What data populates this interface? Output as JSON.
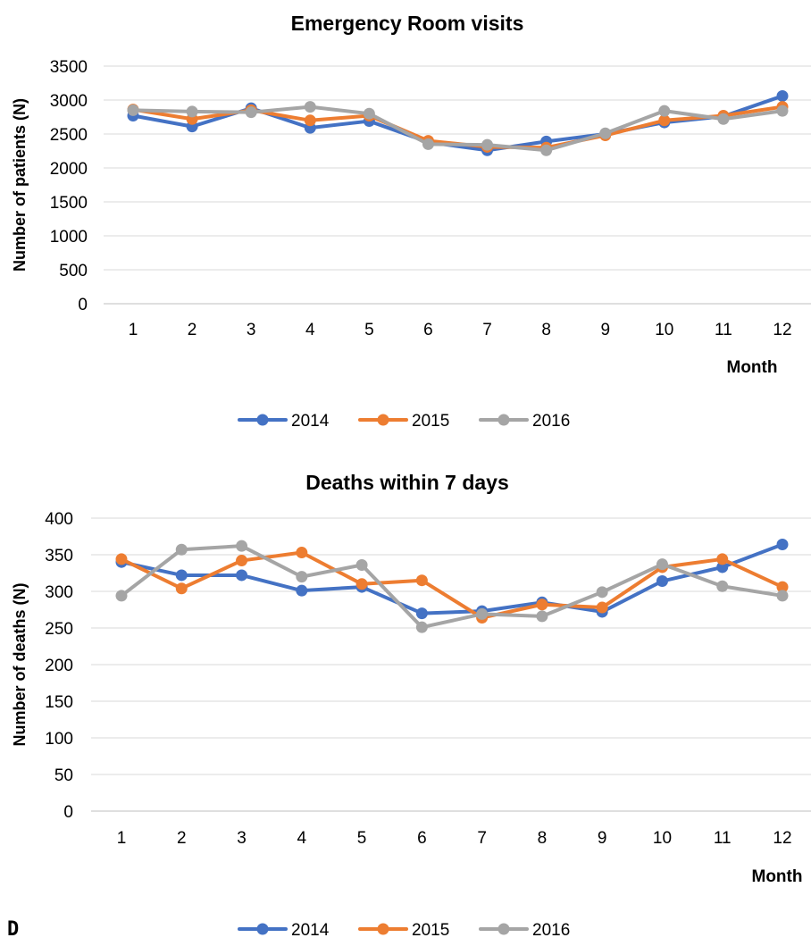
{
  "panel_label": "D",
  "chart_data": [
    {
      "type": "line",
      "title": "Emergency Room visits",
      "xlabel": "Month",
      "ylabel": "Number of patients (N)",
      "ylim": [
        0,
        3500
      ],
      "yticks": [
        0,
        500,
        1000,
        1500,
        2000,
        2500,
        3000,
        3500
      ],
      "categories": [
        "1",
        "2",
        "3",
        "4",
        "5",
        "6",
        "7",
        "8",
        "9",
        "10",
        "11",
        "12"
      ],
      "grid": true,
      "legend": "bottom",
      "series": [
        {
          "name": "2014",
          "color": "#4472c4",
          "values": [
            2770,
            2610,
            2880,
            2590,
            2690,
            2380,
            2260,
            2390,
            2500,
            2670,
            2760,
            3060
          ]
        },
        {
          "name": "2015",
          "color": "#ed7d31",
          "values": [
            2860,
            2720,
            2850,
            2700,
            2770,
            2400,
            2310,
            2300,
            2480,
            2700,
            2770,
            2900
          ]
        },
        {
          "name": "2016",
          "color": "#a5a5a5",
          "values": [
            2850,
            2830,
            2820,
            2900,
            2800,
            2350,
            2340,
            2260,
            2510,
            2840,
            2720,
            2840
          ]
        }
      ]
    },
    {
      "type": "line",
      "title": "Deaths within 7 days",
      "xlabel": "Month",
      "ylabel": "Number of deaths (N)",
      "ylim": [
        0,
        400
      ],
      "yticks": [
        0,
        50,
        100,
        150,
        200,
        250,
        300,
        350,
        400
      ],
      "categories": [
        "1",
        "2",
        "3",
        "4",
        "5",
        "6",
        "7",
        "8",
        "9",
        "10",
        "11",
        "12"
      ],
      "grid": true,
      "legend": "bottom",
      "series": [
        {
          "name": "2014",
          "color": "#4472c4",
          "values": [
            340,
            322,
            322,
            301,
            306,
            270,
            273,
            285,
            272,
            314,
            333,
            364
          ]
        },
        {
          "name": "2015",
          "color": "#ed7d31",
          "values": [
            344,
            304,
            342,
            353,
            310,
            315,
            264,
            282,
            278,
            333,
            344,
            306
          ]
        },
        {
          "name": "2016",
          "color": "#a5a5a5",
          "values": [
            294,
            357,
            362,
            320,
            336,
            251,
            269,
            266,
            299,
            337,
            307,
            294
          ]
        }
      ]
    }
  ]
}
